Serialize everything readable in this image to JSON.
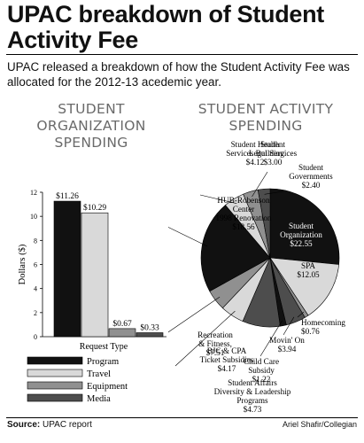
{
  "header": {
    "title": "UPAC breakdown of Student Activity Fee",
    "subtitle": "UPAC released a breakdown of how the Student Activity Fee was allocated for the 2012-13 acedemic year."
  },
  "sections": {
    "left": "STUDENT ORGANIZATION SPENDING",
    "right": "STUDENT ACTIVITY SPENDING"
  },
  "footer": {
    "source_label": "Source:",
    "source_text": "UPAC report",
    "credit": "Ariel Shafir/Collegian"
  },
  "colors": {
    "program": "#111111",
    "travel": "#d9d9d9",
    "equipment": "#909090",
    "media": "#4d4d4d",
    "light_gray": "#c2c2c2"
  },
  "chart_data": [
    {
      "type": "bar",
      "title": "STUDENT ORGANIZATION SPENDING",
      "xlabel": "Request Type",
      "ylabel": "Dollars ($)",
      "ylim": [
        0,
        12
      ],
      "yticks": [
        "0",
        "2",
        "4",
        "6",
        "8",
        "10",
        "12"
      ],
      "categories": [
        "Program",
        "Travel",
        "Equipment",
        "Media"
      ],
      "values": [
        11.26,
        10.29,
        0.67,
        0.33
      ],
      "labels": [
        "$11.26",
        "$10.29",
        "$0.67",
        "$0.33"
      ],
      "colors": [
        "#111111",
        "#d9d9d9",
        "#909090",
        "#4d4d4d"
      ],
      "legend": "bottom",
      "grid": false
    },
    {
      "type": "pie",
      "title": "STUDENT ACTIVITY SPENDING",
      "slices": [
        {
          "label": "Student Organization",
          "value": 22.55,
          "display": "$22.55",
          "color": "#111111"
        },
        {
          "label": "SPA",
          "value": 12.05,
          "display": "$12.05",
          "color": "#d9d9d9"
        },
        {
          "label": "Homecoming",
          "value": 0.76,
          "display": "$0.76",
          "color": "#909090"
        },
        {
          "label": "Movin' On",
          "value": 3.94,
          "display": "$3.94",
          "color": "#4d4d4d"
        },
        {
          "label": "Child Care Subsidy",
          "value": 1.22,
          "display": "$1.22",
          "color": "#111111"
        },
        {
          "label": "Recreation & Fitness,",
          "value": 7.51,
          "display": "$7.51",
          "color": "#4d4d4d"
        },
        {
          "label": "Student Affairs Diversity & Leadership Programs",
          "value": 4.73,
          "display": "$4.73",
          "color": "#d9d9d9"
        },
        {
          "label": "BJC & CPA Ticket Subsidies",
          "value": 4.17,
          "display": "$4.17",
          "color": "#909090"
        },
        {
          "label": "HUB-Robenson Center 1998 Renovation",
          "value": 18.56,
          "display": "$18.56",
          "color": "#111111"
        },
        {
          "label": "Student Health Services Building",
          "value": 4.12,
          "display": "$4.12",
          "color": "#d9d9d9"
        },
        {
          "label": "Student Legal Services",
          "value": 3.0,
          "display": "$3.00",
          "color": "#909090"
        },
        {
          "label": "Student Governments",
          "value": 2.4,
          "display": "$2.40",
          "color": "#4d4d4d"
        }
      ]
    }
  ]
}
